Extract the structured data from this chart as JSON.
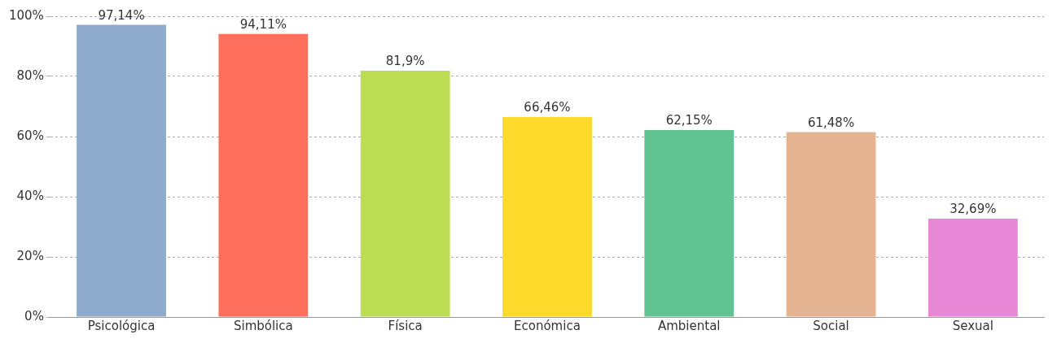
{
  "chart_data": {
    "type": "bar",
    "categories": [
      "Psicológica",
      "Simbólica",
      "Física",
      "Económica",
      "Ambiental",
      "Social",
      "Sexual"
    ],
    "values": [
      97.14,
      94.11,
      81.9,
      66.46,
      62.15,
      61.48,
      32.69
    ],
    "colors": [
      "#8eaacc",
      "#fe6f5e",
      "#bcdc53",
      "#fcd92b",
      "#62c392",
      "#e4b391",
      "#e688d6"
    ],
    "value_labels": [
      "97,14%",
      "94,11%",
      "81,9%",
      "66,46%",
      "62,15%",
      "61,48%",
      "32,69%"
    ],
    "ylim": [
      0,
      100
    ],
    "yticks": [
      {
        "value": 0,
        "label": "0%"
      },
      {
        "value": 20,
        "label": "20%"
      },
      {
        "value": 40,
        "label": "40%"
      },
      {
        "value": 60,
        "label": "60%"
      },
      {
        "value": 80,
        "label": "80%"
      },
      {
        "value": 100,
        "label": "100%"
      }
    ],
    "grid": "y",
    "legend": false
  }
}
